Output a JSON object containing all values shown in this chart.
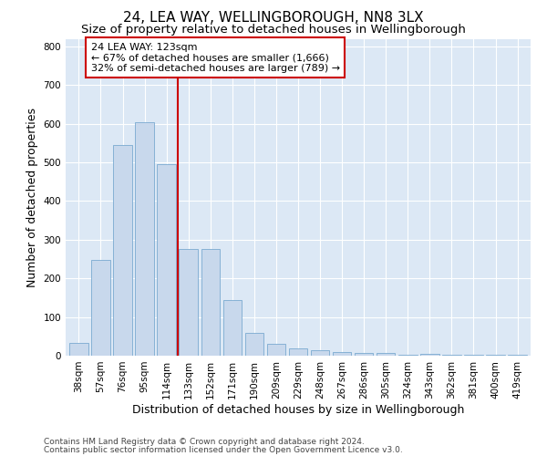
{
  "title": "24, LEA WAY, WELLINGBOROUGH, NN8 3LX",
  "subtitle": "Size of property relative to detached houses in Wellingborough",
  "xlabel": "Distribution of detached houses by size in Wellingborough",
  "ylabel": "Number of detached properties",
  "categories": [
    "38sqm",
    "57sqm",
    "76sqm",
    "95sqm",
    "114sqm",
    "133sqm",
    "152sqm",
    "171sqm",
    "190sqm",
    "209sqm",
    "229sqm",
    "248sqm",
    "267sqm",
    "286sqm",
    "305sqm",
    "324sqm",
    "343sqm",
    "362sqm",
    "381sqm",
    "400sqm",
    "419sqm"
  ],
  "values": [
    33,
    248,
    545,
    605,
    495,
    275,
    275,
    145,
    60,
    30,
    18,
    13,
    10,
    8,
    8,
    3,
    5,
    3,
    2,
    2,
    3
  ],
  "bar_color": "#c8d8ec",
  "bar_edge_color": "#7aaad0",
  "vline_x": 4.5,
  "vline_color": "#cc0000",
  "annotation_text": "24 LEA WAY: 123sqm\n← 67% of detached houses are smaller (1,666)\n32% of semi-detached houses are larger (789) →",
  "annotation_box_color": "#ffffff",
  "annotation_box_edge": "#cc0000",
  "ylim": [
    0,
    820
  ],
  "yticks": [
    0,
    100,
    200,
    300,
    400,
    500,
    600,
    700,
    800
  ],
  "fig_bg_color": "#ffffff",
  "plot_bg_color": "#dce8f5",
  "footer1": "Contains HM Land Registry data © Crown copyright and database right 2024.",
  "footer2": "Contains public sector information licensed under the Open Government Licence v3.0.",
  "title_fontsize": 11,
  "subtitle_fontsize": 9.5,
  "axis_label_fontsize": 9,
  "tick_fontsize": 7.5,
  "footer_fontsize": 6.5,
  "annot_fontsize": 8
}
